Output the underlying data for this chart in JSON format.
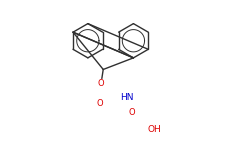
{
  "background": "#ffffff",
  "bond_color": "#303030",
  "bond_lw": 1.0,
  "atom_colors": {
    "O": "#dd0000",
    "N": "#0000cc",
    "C": "#303030"
  },
  "font_size_atom": 6.0,
  "figsize": [
    2.42,
    1.5
  ],
  "dpi": 100
}
